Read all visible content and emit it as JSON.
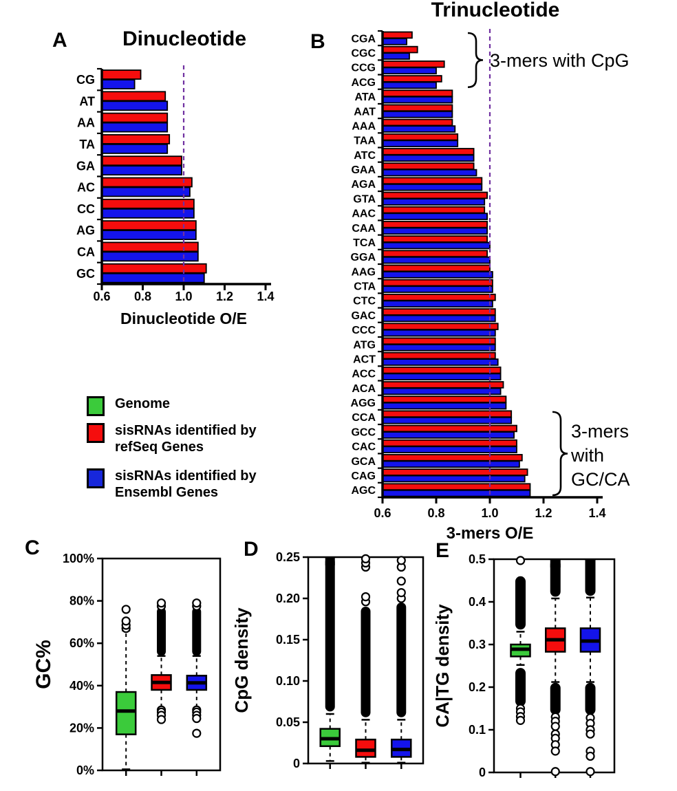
{
  "legend": {
    "items": [
      {
        "label": "Genome",
        "color": "#3BCB3B"
      },
      {
        "label": "sisRNAs identified by refSeq Genes",
        "color": "#F50D0D"
      },
      {
        "label": "sisRNAs identified by Ensembl Genes",
        "color": "#1727DB"
      }
    ]
  },
  "chart_data": [
    {
      "id": "A",
      "panel_label": "A",
      "type": "bar",
      "orientation": "horizontal",
      "title": "Dinucleotide",
      "xlabel": "Dinucleotide O/E",
      "xlim": [
        0.6,
        1.4
      ],
      "xticks": [
        "0.6",
        "0.8",
        "1.0",
        "1.2",
        "1.4"
      ],
      "reference_line": {
        "x": 1.0,
        "color": "#7030A0"
      },
      "categories": [
        "CG",
        "AT",
        "AA",
        "TA",
        "GA",
        "AC",
        "CC",
        "AG",
        "CA",
        "GC"
      ],
      "series": [
        {
          "name": "sisRNAs identified by refSeq Genes",
          "color": "#F50D0D",
          "values": [
            0.79,
            0.91,
            0.92,
            0.93,
            0.99,
            1.04,
            1.05,
            1.06,
            1.07,
            1.11
          ]
        },
        {
          "name": "sisRNAs identified by Ensembl Genes",
          "color": "#1414EB",
          "values": [
            0.76,
            0.92,
            0.92,
            0.92,
            0.99,
            1.03,
            1.05,
            1.06,
            1.07,
            1.1
          ]
        }
      ]
    },
    {
      "id": "B",
      "panel_label": "B",
      "type": "bar",
      "orientation": "horizontal",
      "title": "Trinucleotide",
      "xlabel": "3-mers O/E",
      "xlim": [
        0.6,
        1.4
      ],
      "xticks": [
        "0.6",
        "0.8",
        "1.0",
        "1.2",
        "1.4"
      ],
      "reference_line": {
        "x": 1.0,
        "color": "#7030A0"
      },
      "categories": [
        "CGA",
        "CGC",
        "CCG",
        "ACG",
        "ATA",
        "AAT",
        "AAA",
        "TAA",
        "ATC",
        "GAA",
        "AGA",
        "GTA",
        "AAC",
        "CAA",
        "TCA",
        "GGA",
        "AAG",
        "CTA",
        "CTC",
        "GAC",
        "CCC",
        "ATG",
        "ACT",
        "ACC",
        "ACA",
        "AGG",
        "CCA",
        "GCC",
        "CAC",
        "GCA",
        "CAG",
        "AGC"
      ],
      "series": [
        {
          "name": "sisRNAs identified by refSeq Genes",
          "color": "#F50D0D",
          "values": [
            0.71,
            0.73,
            0.83,
            0.82,
            0.86,
            0.86,
            0.86,
            0.88,
            0.94,
            0.94,
            0.97,
            0.99,
            0.98,
            0.99,
            0.99,
            0.99,
            1.0,
            1.01,
            1.02,
            1.02,
            1.03,
            1.02,
            1.02,
            1.04,
            1.05,
            1.06,
            1.08,
            1.1,
            1.1,
            1.12,
            1.14,
            1.15
          ]
        },
        {
          "name": "sisRNAs identified by Ensembl Genes",
          "color": "#1414EB",
          "values": [
            0.69,
            0.7,
            0.8,
            0.8,
            0.86,
            0.86,
            0.87,
            0.88,
            0.94,
            0.95,
            0.97,
            0.98,
            0.99,
            0.99,
            1.0,
            1.0,
            1.01,
            1.01,
            1.01,
            1.02,
            1.02,
            1.02,
            1.03,
            1.04,
            1.04,
            1.06,
            1.08,
            1.09,
            1.1,
            1.11,
            1.13,
            1.15
          ]
        }
      ],
      "annotations": [
        {
          "text": "3-mers with CpG",
          "lines": [
            "3-mers with CpG"
          ],
          "from_category": "CGA",
          "to_category": "ACG"
        },
        {
          "text": "3-mers with GC/CA",
          "lines": [
            "3-mers",
            "with",
            "GC/CA"
          ],
          "from_category": "CCA",
          "to_category": "AGC"
        }
      ]
    },
    {
      "id": "C",
      "panel_label": "C",
      "type": "boxplot",
      "ylabel": "GC%",
      "ylim": [
        0,
        100
      ],
      "yticks": [
        {
          "value": 0,
          "label": "0%"
        },
        {
          "value": 20,
          "label": "20%"
        },
        {
          "value": 40,
          "label": "40%"
        },
        {
          "value": 60,
          "label": "60%"
        },
        {
          "value": 80,
          "label": "80%"
        },
        {
          "value": 100,
          "label": "100%"
        }
      ],
      "groups": [
        {
          "name": "Genome",
          "color": "#3BCB3B",
          "q1": 17,
          "median": 28,
          "q3": 37,
          "whisker_low": 0.5,
          "whisker_high": 66,
          "outlier_columns": [],
          "outliers": [
            67,
            68.5,
            70.5,
            76
          ]
        },
        {
          "name": "sisRNAs identified by refSeq Genes",
          "color": "#F50D0D",
          "q1": 38,
          "median": 41.5,
          "q3": 45,
          "whisker_low": 29,
          "whisker_high": 54,
          "outlier_columns": [
            [
              54,
              77
            ]
          ],
          "outliers": [
            77.5,
            79,
            28.5,
            27.5,
            26,
            24
          ]
        },
        {
          "name": "sisRNAs identified by Ensembl Genes",
          "color": "#1414EB",
          "q1": 38,
          "median": 41.3,
          "q3": 44.7,
          "whisker_low": 29,
          "whisker_high": 54,
          "outlier_columns": [
            [
              54,
              77
            ]
          ],
          "outliers": [
            77.5,
            79,
            28.5,
            27.5,
            26,
            24.5,
            17.5
          ]
        }
      ]
    },
    {
      "id": "D",
      "panel_label": "D",
      "type": "boxplot",
      "ylabel": "CpG density",
      "ylim": [
        0,
        0.25
      ],
      "yticks": [
        {
          "value": 0,
          "label": "0"
        },
        {
          "value": 0.05,
          "label": "0.05"
        },
        {
          "value": 0.1,
          "label": "0.10"
        },
        {
          "value": 0.15,
          "label": "0.15"
        },
        {
          "value": 0.2,
          "label": "0.20"
        },
        {
          "value": 0.25,
          "label": "0.25"
        }
      ],
      "groups": [
        {
          "name": "Genome",
          "color": "#3BCB3B",
          "q1": 0.021,
          "median": 0.03,
          "q3": 0.042,
          "whisker_low": 0.003,
          "whisker_high": 0.06,
          "outlier_columns": [
            [
              0.063,
              0.25
            ]
          ],
          "outliers": []
        },
        {
          "name": "sisRNAs identified by refSeq Genes",
          "color": "#F50D0D",
          "q1": 0.008,
          "median": 0.016,
          "q3": 0.029,
          "whisker_low": 0.001,
          "whisker_high": 0.053,
          "outlier_columns": [
            [
              0.056,
              0.19
            ]
          ],
          "outliers": [
            0.196,
            0.202,
            0.238,
            0.243,
            0.248
          ]
        },
        {
          "name": "sisRNAs identified by Ensembl Genes",
          "color": "#1414EB",
          "q1": 0.008,
          "median": 0.017,
          "q3": 0.029,
          "whisker_low": 0.001,
          "whisker_high": 0.053,
          "outlier_columns": [
            [
              0.056,
              0.195
            ]
          ],
          "outliers": [
            0.2,
            0.207,
            0.221,
            0.238,
            0.246
          ]
        }
      ]
    },
    {
      "id": "E",
      "panel_label": "E",
      "type": "boxplot",
      "ylabel": "CA|TG density",
      "ylim": [
        0,
        0.5
      ],
      "yticks": [
        {
          "value": 0,
          "label": "0"
        },
        {
          "value": 0.1,
          "label": "0.1"
        },
        {
          "value": 0.2,
          "label": "0.2"
        },
        {
          "value": 0.3,
          "label": "0.3"
        },
        {
          "value": 0.4,
          "label": "0.4"
        },
        {
          "value": 0.5,
          "label": "0.5"
        }
      ],
      "groups": [
        {
          "name": "Genome",
          "color": "#3BCB3B",
          "q1": 0.272,
          "median": 0.289,
          "q3": 0.3,
          "whisker_low": 0.252,
          "whisker_high": 0.33,
          "outlier_columns": [
            [
              0.335,
              0.46
            ],
            [
              0.155,
              0.245
            ]
          ],
          "outliers": [
            0.497,
            0.15,
            0.142,
            0.131,
            0.122
          ]
        },
        {
          "name": "sisRNAs identified by refSeq Genes",
          "color": "#F50D0D",
          "q1": 0.283,
          "median": 0.311,
          "q3": 0.338,
          "whisker_low": 0.212,
          "whisker_high": 0.408,
          "outlier_columns": [
            [
              0.412,
              0.5
            ],
            [
              0.135,
              0.21
            ]
          ],
          "outliers": [
            0.13,
            0.12,
            0.108,
            0.09,
            0.08,
            0.065,
            0.05,
            0.002
          ]
        },
        {
          "name": "sisRNAs identified by Ensembl Genes",
          "color": "#1414EB",
          "q1": 0.283,
          "median": 0.308,
          "q3": 0.338,
          "whisker_low": 0.212,
          "whisker_high": 0.41,
          "outlier_columns": [
            [
              0.414,
              0.5
            ],
            [
              0.135,
              0.21
            ]
          ],
          "outliers": [
            0.128,
            0.115,
            0.1,
            0.09,
            0.05,
            0.038,
            0.002
          ]
        }
      ]
    }
  ]
}
